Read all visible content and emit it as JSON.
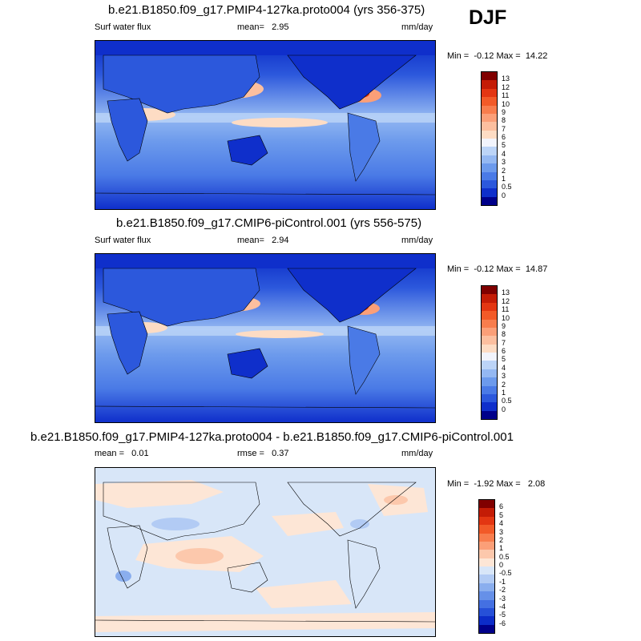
{
  "season": "DJF",
  "panels": [
    {
      "title": "b.e21.B1850.f09_g17.PMIP4-127ka.proto004 (yrs 356-375)",
      "variable": "Surf water flux",
      "stat1": "mean=   2.95",
      "stat2": "",
      "units": "mm/day",
      "minmax": "Min =  -0.12 Max =  14.22",
      "colorbar_labels": [
        "13",
        "12",
        "11",
        "10",
        "9",
        "8",
        "7",
        "6",
        "5",
        "4",
        "3",
        "2",
        "1",
        "0.5",
        "0"
      ],
      "colorbar_colors": [
        "#800000",
        "#c41c06",
        "#e33612",
        "#f25a28",
        "#f87d4d",
        "#fb9f78",
        "#fcbf9f",
        "#fddcc4",
        "#f2f4fc",
        "#bcd4f7",
        "#94b8f2",
        "#6c9aec",
        "#4a7ae6",
        "#2c58dc",
        "#0f2fcb",
        "#00008a"
      ]
    },
    {
      "title": "b.e21.B1850.f09_g17.CMIP6-piControl.001 (yrs 556-575)",
      "variable": "Surf water flux",
      "stat1": "mean=   2.94",
      "stat2": "",
      "units": "mm/day",
      "minmax": "Min =  -0.12 Max =  14.87",
      "colorbar_labels": [
        "13",
        "12",
        "11",
        "10",
        "9",
        "8",
        "7",
        "6",
        "5",
        "4",
        "3",
        "2",
        "1",
        "0.5",
        "0"
      ],
      "colorbar_colors": [
        "#800000",
        "#c41c06",
        "#e33612",
        "#f25a28",
        "#f87d4d",
        "#fb9f78",
        "#fcbf9f",
        "#fddcc4",
        "#f2f4fc",
        "#bcd4f7",
        "#94b8f2",
        "#6c9aec",
        "#4a7ae6",
        "#2c58dc",
        "#0f2fcb",
        "#00008a"
      ]
    },
    {
      "title": "b.e21.B1850.f09_g17.PMIP4-127ka.proto004 - b.e21.B1850.f09_g17.CMIP6-piControl.001",
      "variable": "",
      "stat1": "mean =   0.01",
      "stat2": "rmse =   0.37",
      "units": "mm/day",
      "minmax": "Min =  -1.92 Max =   2.08",
      "colorbar_labels": [
        "6",
        "5",
        "4",
        "3",
        "2",
        "1",
        "0.5",
        "0",
        "-0.5",
        "-1",
        "-2",
        "-3",
        "-4",
        "-5",
        "-6"
      ],
      "colorbar_colors": [
        "#800000",
        "#c41c06",
        "#e33612",
        "#f25a28",
        "#f87d4d",
        "#fb9f78",
        "#fcc8ac",
        "#fde6d6",
        "#d8e6f8",
        "#b2cbf4",
        "#8aaeee",
        "#6690e8",
        "#4470e2",
        "#2650d8",
        "#0c2cc8",
        "#00008a"
      ]
    }
  ]
}
